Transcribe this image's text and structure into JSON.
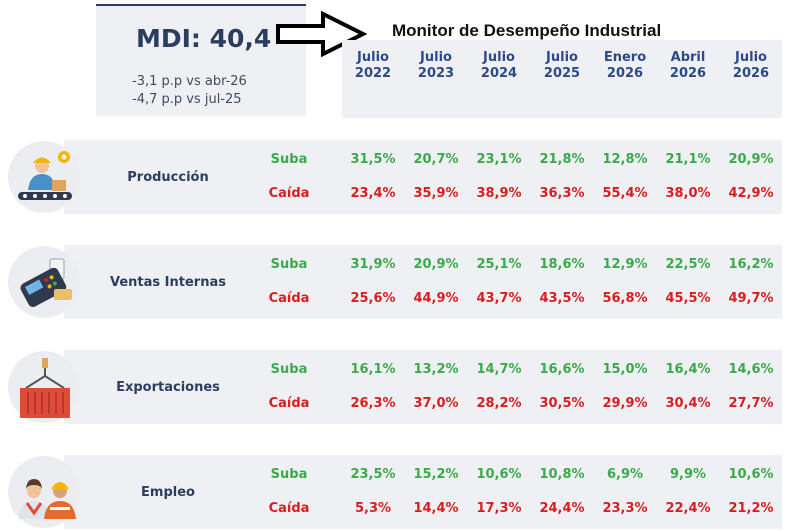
{
  "mdi": {
    "title": "MDI: 40,4",
    "delta_month": "-3,1 p.p vs abr-26",
    "delta_year": "-4,7 p.p vs jul-25"
  },
  "title": "Monitor de Desempeño Industrial",
  "periods": [
    {
      "month": "Julio",
      "year": "2022"
    },
    {
      "month": "Julio",
      "year": "2023"
    },
    {
      "month": "Julio",
      "year": "2024"
    },
    {
      "month": "Julio",
      "year": "2025"
    },
    {
      "month": "Enero",
      "year": "2026"
    },
    {
      "month": "Abril",
      "year": "2026"
    },
    {
      "month": "Julio",
      "year": "2026"
    }
  ],
  "rows": [
    {
      "label": "Producción",
      "icon": "factory-worker-icon",
      "up_label": "Suba",
      "down_label": "Caída",
      "up": [
        "31,5%",
        "20,7%",
        "23,1%",
        "21,8%",
        "12,8%",
        "21,1%",
        "20,9%"
      ],
      "down": [
        "23,4%",
        "35,9%",
        "38,9%",
        "36,3%",
        "55,4%",
        "38,0%",
        "42,9%"
      ]
    },
    {
      "label": "Ventas Internas",
      "icon": "payment-terminal-icon",
      "up_label": "Suba",
      "down_label": "Caída",
      "up": [
        "31,9%",
        "20,9%",
        "25,1%",
        "18,6%",
        "12,9%",
        "22,5%",
        "16,2%"
      ],
      "down": [
        "25,6%",
        "44,9%",
        "43,7%",
        "43,5%",
        "56,8%",
        "45,5%",
        "49,7%"
      ]
    },
    {
      "label": "Exportaciones",
      "icon": "shipping-container-icon",
      "up_label": "Suba",
      "down_label": "Caída",
      "up": [
        "16,1%",
        "13,2%",
        "14,7%",
        "16,6%",
        "15,0%",
        "16,4%",
        "14,6%"
      ],
      "down": [
        "26,3%",
        "37,0%",
        "28,2%",
        "30,5%",
        "29,9%",
        "30,4%",
        "27,7%"
      ]
    },
    {
      "label": "Empleo",
      "icon": "workers-icon",
      "up_label": "Suba",
      "down_label": "Caída",
      "up": [
        "23,5%",
        "15,2%",
        "10,6%",
        "10,8%",
        "6,9%",
        "9,9%",
        "10,6%"
      ],
      "down": [
        "5,3%",
        "14,4%",
        "17,3%",
        "24,4%",
        "23,3%",
        "22,4%",
        "21,2%"
      ]
    }
  ],
  "colors": {
    "navy": "#2c3e5f",
    "header_blue": "#2c4a8a",
    "rise": "#3aaa4a",
    "fall": "#d71f1f",
    "panel": "#eef0f3"
  }
}
